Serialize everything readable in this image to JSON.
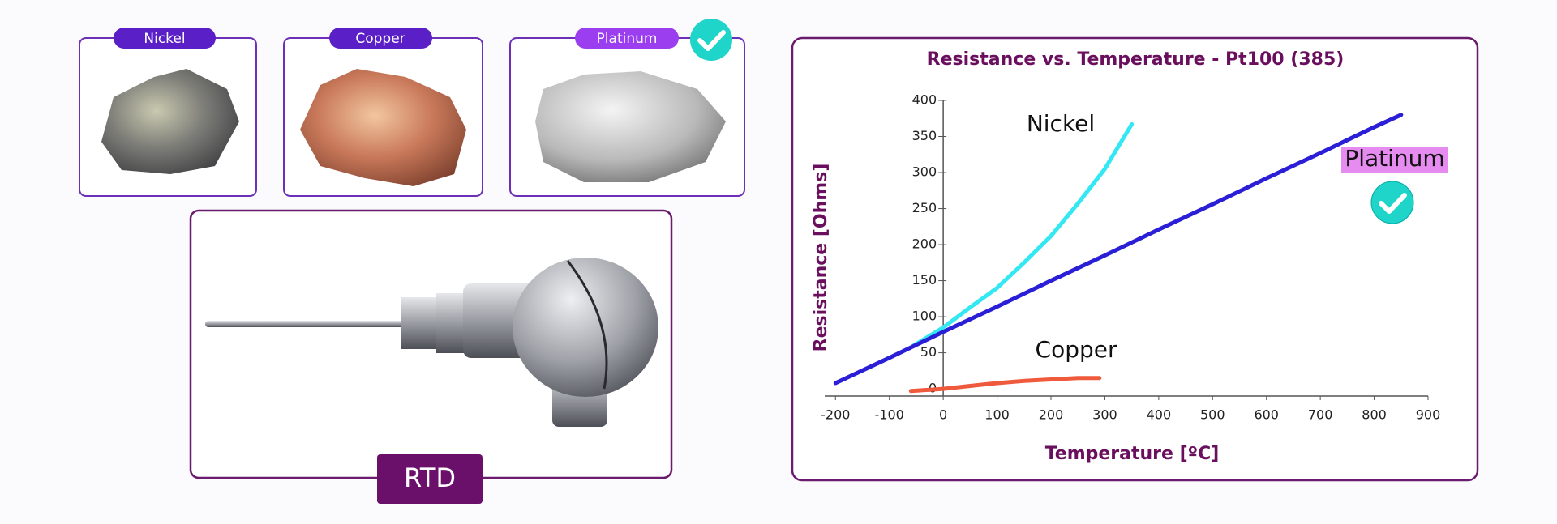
{
  "materials": [
    "Nickel",
    "Copper",
    "Platinum"
  ],
  "device": "RTD",
  "chart_data": {
    "type": "line",
    "title": "Resistance  vs. Temperature - Pt100 (385)",
    "x_label": "Temperature [ºC]",
    "y_label": "Resistance [Ohms]",
    "xlim": [
      -220,
      900
    ],
    "ylim": [
      -10,
      400
    ],
    "xticks": [
      -200,
      -100,
      0,
      100,
      200,
      300,
      400,
      500,
      600,
      700,
      800,
      900
    ],
    "yticks": [
      0,
      50,
      100,
      150,
      200,
      250,
      300,
      350,
      400
    ],
    "series": [
      {
        "name": "Nickel",
        "color": "#33e8f2",
        "x": [
          -55,
          0,
          50,
          100,
          150,
          200,
          250,
          300,
          350
        ],
        "values": [
          60,
          85,
          113,
          140,
          175,
          212,
          257,
          305,
          367
        ]
      },
      {
        "name": "Copper",
        "color": "#f05a3c",
        "x": [
          -60,
          0,
          50,
          100,
          150,
          200,
          250,
          290
        ],
        "values": [
          -3,
          0,
          4,
          8,
          11,
          13,
          15,
          15
        ]
      },
      {
        "name": "Platinum",
        "color": "#2a1fd6",
        "x": [
          -200,
          -100,
          0,
          100,
          200,
          300,
          400,
          500,
          600,
          700,
          800,
          850
        ],
        "values": [
          8,
          43,
          79,
          114,
          150,
          185,
          221,
          256,
          292,
          327,
          363,
          380
        ]
      }
    ]
  }
}
